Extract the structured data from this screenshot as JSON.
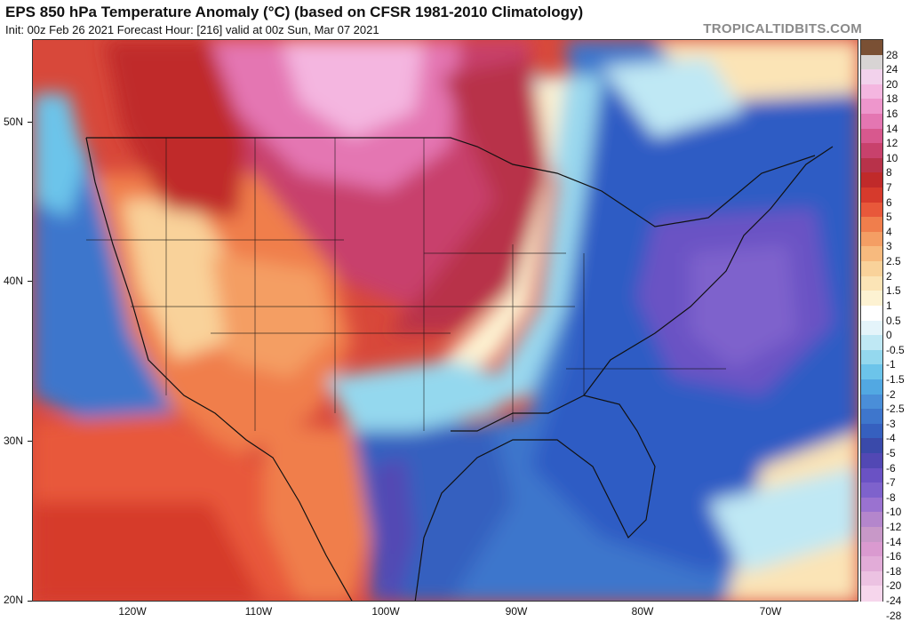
{
  "header": {
    "title": "EPS 850 hPa Temperature Anomaly (°C) (based on CFSR 1981-2010 Climatology)",
    "subtitle": "Init: 00z Feb 26 2021   Forecast Hour: [216]   valid at 00z Sun, Mar 07 2021",
    "brand": "TROPICALTIDBITS.COM"
  },
  "axes": {
    "lat_labels": [
      "50N",
      "40N",
      "30N",
      "20N"
    ],
    "lon_labels": [
      "120W",
      "110W",
      "100W",
      "90W",
      "80W",
      "70W"
    ]
  },
  "colorbar": {
    "labels": [
      "28",
      "24",
      "20",
      "18",
      "16",
      "14",
      "12",
      "10",
      "8",
      "7",
      "6",
      "5",
      "4",
      "3",
      "2.5",
      "2",
      "1.5",
      "1",
      "0.5",
      "0",
      "-0.5",
      "-1",
      "-1.5",
      "-2",
      "-2.5",
      "-3",
      "-4",
      "-5",
      "-6",
      "-7",
      "-8",
      "-10",
      "-12",
      "-14",
      "-16",
      "-18",
      "-20",
      "-24",
      "-28"
    ],
    "colors": [
      "#7a5034",
      "#d8d4d4",
      "#f2d2ec",
      "#f4b6e0",
      "#ee96cc",
      "#e476b2",
      "#d8588e",
      "#c8416c",
      "#b8324a",
      "#c02a2a",
      "#d63a2c",
      "#e8583a",
      "#f07e4c",
      "#f49e64",
      "#f7ba7e",
      "#f9d29a",
      "#fbe4b6",
      "#fdf2d2",
      "#ffffff",
      "#e4f4fa",
      "#bfe8f4",
      "#94d8ee",
      "#6cc4ea",
      "#52a8e2",
      "#4a8ed8",
      "#3e76cc",
      "#3660bf",
      "#3a4aaa",
      "#5248b4",
      "#6a52c4",
      "#7e62cc",
      "#9a72d0",
      "#b486cc",
      "#c898c8",
      "#da9ad0",
      "#e2acd8",
      "#ecc2e2",
      "#f6d6ec"
    ]
  }
}
